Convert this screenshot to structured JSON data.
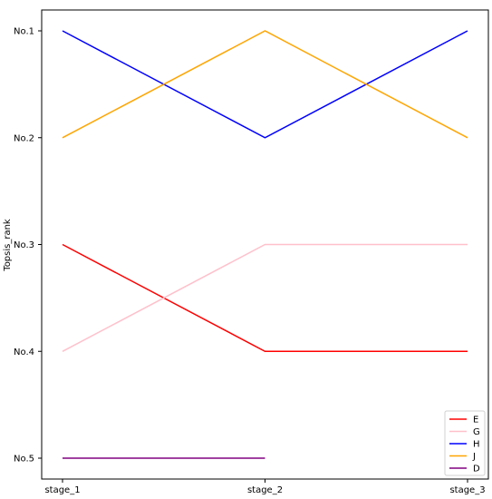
{
  "chart_data": {
    "type": "line",
    "title": "",
    "xlabel": "",
    "ylabel": "Topsis_rank",
    "x": [
      "stage_1",
      "stage_2",
      "stage_3"
    ],
    "y_ticks": [
      {
        "value": 1,
        "label": "No.1"
      },
      {
        "value": 2,
        "label": "No.2"
      },
      {
        "value": 3,
        "label": "No.3"
      },
      {
        "value": 4,
        "label": "No.4"
      },
      {
        "value": 5,
        "label": "No.5"
      }
    ],
    "y_inverted": true,
    "grid": false,
    "legend_position": "bottom-right",
    "series": [
      {
        "name": "E",
        "color": "#ff0000",
        "values": [
          3,
          4,
          4
        ]
      },
      {
        "name": "G",
        "color": "#ffc0cb",
        "values": [
          4,
          3,
          3
        ]
      },
      {
        "name": "H",
        "color": "#0000ff",
        "values": [
          1,
          2,
          1
        ]
      },
      {
        "name": "J",
        "color": "#ffa500",
        "values": [
          2,
          1,
          2
        ]
      },
      {
        "name": "D",
        "color": "#800080",
        "values": [
          5,
          5,
          null
        ]
      }
    ]
  }
}
